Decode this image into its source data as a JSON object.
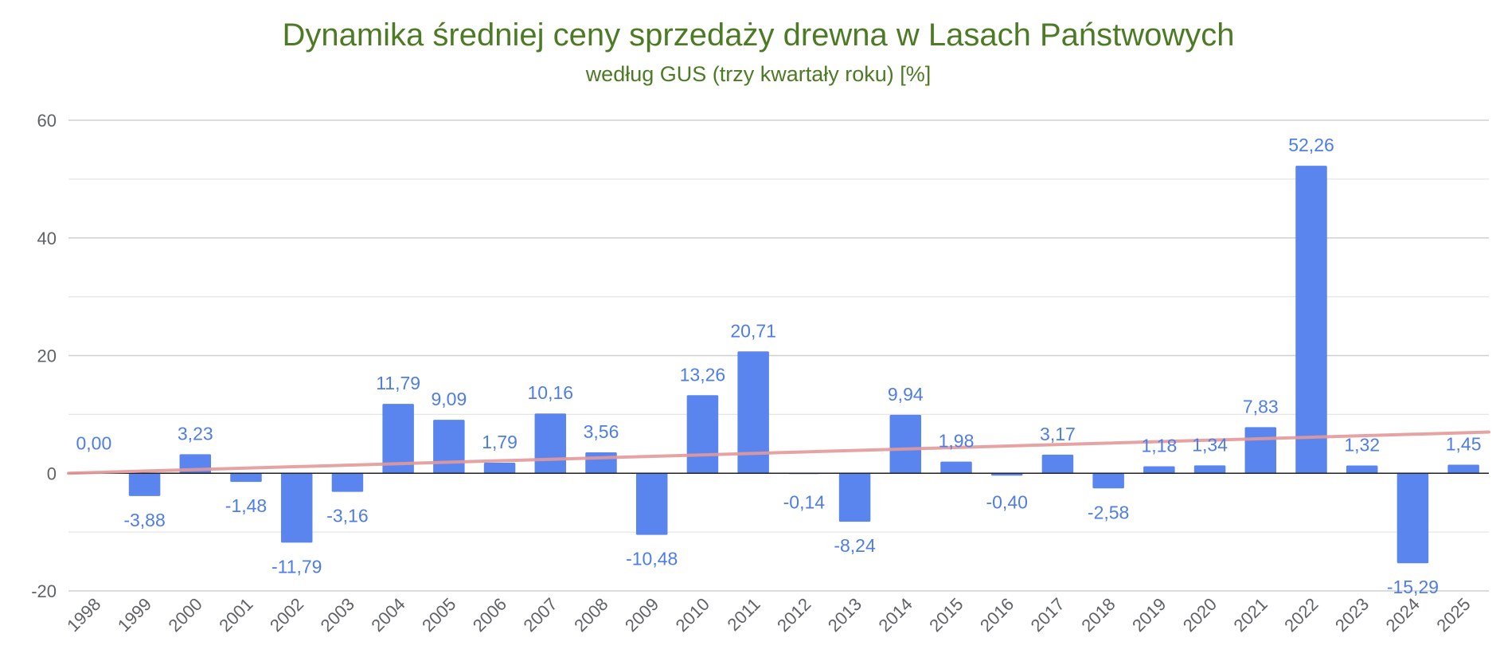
{
  "chart_data": {
    "type": "bar",
    "title": "Dynamika średniej ceny sprzedaży drewna w  Lasach Państwowych",
    "subtitle": "według GUS (trzy kwartały roku) [%]",
    "xlabel": "",
    "ylabel": "",
    "ylim": [
      -20,
      60
    ],
    "yticks": [
      "60",
      "40",
      "20",
      "0",
      "-20"
    ],
    "categories": [
      "1998",
      "1999",
      "2000",
      "2001",
      "2002",
      "2003",
      "2004",
      "2005",
      "2006",
      "2007",
      "2008",
      "2009",
      "2010",
      "2011",
      "2012",
      "2013",
      "2014",
      "2015",
      "2016",
      "2017",
      "2018",
      "2019",
      "2020",
      "2021",
      "2022",
      "2023",
      "2024",
      "2025"
    ],
    "values": [
      0.0,
      -3.88,
      3.23,
      -1.48,
      -11.79,
      -3.16,
      11.79,
      9.09,
      1.79,
      10.16,
      3.56,
      -10.48,
      13.26,
      20.71,
      -0.14,
      -8.24,
      9.94,
      1.98,
      -0.4,
      3.17,
      -2.58,
      1.18,
      1.34,
      7.83,
      52.26,
      1.32,
      -15.29,
      1.45
    ],
    "labels": [
      "0,00",
      "-3,88",
      "3,23",
      "-1,48",
      "-11,79",
      "-3,16",
      "11,79",
      "9,09",
      "1,79",
      "10,16",
      "3,56",
      "-10,48",
      "13,26",
      "20,71",
      "-0,14",
      "-8,24",
      "9,94",
      "1,98",
      "-0,40",
      "3,17",
      "-2,58",
      "1,18",
      "1,34",
      "7,83",
      "52,26",
      "1,32",
      "-15,29",
      "1,45"
    ],
    "trendline": {
      "type": "linear",
      "start": 0.0,
      "end": 7.0
    },
    "grid": true,
    "legend": "none",
    "colors": {
      "bar": "#5b85ee",
      "label": "#4f7de8",
      "trend": "#e49a9a",
      "title": "#4d7a25",
      "grid": "#d0d0d0",
      "zero": "#222222",
      "axis_text": "#5f6368"
    }
  }
}
